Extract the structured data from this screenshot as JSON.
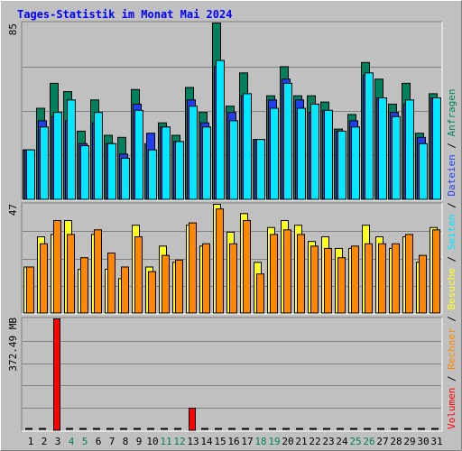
{
  "colors": {
    "background": "#c0c0c0",
    "frame_light": "#ffffff",
    "frame_dark": "#808080",
    "grid": "#808080",
    "title": "#0000ff",
    "anfragen": "#00805c",
    "dateien": "#2040f0",
    "seiten": "#00e8ff",
    "besuche": "#ffff20",
    "rechner": "#ff8800",
    "volumen": "#ff0000",
    "weekday": "#000000",
    "weekend": "#00805c"
  },
  "title": "Tages-Statistik im Monat Mai 2024",
  "legend": {
    "anfragen": "Anfragen",
    "dateien": "Dateien",
    "seiten": "Seiten",
    "besuche": "Besuche",
    "rechner": "Rechner",
    "volumen": "Volumen",
    "sep": " / "
  },
  "chart_data": [
    {
      "type": "bar",
      "title": "Tages-Statistik im Monat Mai 2024",
      "ylabel": "85",
      "ylim": [
        0,
        85
      ],
      "grid": true,
      "categories": [
        "1",
        "2",
        "3",
        "4",
        "5",
        "6",
        "7",
        "8",
        "9",
        "10",
        "11",
        "12",
        "13",
        "14",
        "15",
        "16",
        "17",
        "18",
        "19",
        "20",
        "21",
        "22",
        "23",
        "24",
        "25",
        "26",
        "27",
        "28",
        "29",
        "30",
        "31"
      ],
      "series": [
        {
          "name": "Anfragen",
          "values": [
            24,
            44,
            56,
            52,
            33,
            48,
            31,
            30,
            53,
            27,
            37,
            31,
            54,
            42,
            85,
            45,
            61,
            29,
            50,
            64,
            50,
            50,
            47,
            34,
            41,
            66,
            58,
            46,
            56,
            32,
            51
          ]
        },
        {
          "name": "Dateien",
          "values": [
            24,
            38,
            40,
            38,
            27,
            37,
            27,
            22,
            46,
            32,
            35,
            28,
            48,
            37,
            64,
            42,
            50,
            29,
            48,
            58,
            48,
            42,
            43,
            33,
            38,
            60,
            49,
            42,
            46,
            30,
            49
          ]
        },
        {
          "name": "Seiten",
          "values": [
            24,
            35,
            42,
            48,
            26,
            42,
            27,
            20,
            43,
            24,
            35,
            28,
            45,
            35,
            67,
            38,
            51,
            29,
            44,
            56,
            44,
            46,
            43,
            33,
            35,
            61,
            49,
            40,
            48,
            27,
            49
          ]
        }
      ]
    },
    {
      "type": "bar",
      "ylabel": "47",
      "ylim": [
        0,
        47
      ],
      "grid": true,
      "categories": [
        "1",
        "2",
        "3",
        "4",
        "5",
        "6",
        "7",
        "8",
        "9",
        "10",
        "11",
        "12",
        "13",
        "14",
        "15",
        "16",
        "17",
        "18",
        "19",
        "20",
        "21",
        "22",
        "23",
        "24",
        "25",
        "26",
        "27",
        "28",
        "29",
        "30",
        "31"
      ],
      "series": [
        {
          "name": "Besuche",
          "values": [
            20,
            33,
            34,
            40,
            19,
            34,
            19,
            15,
            38,
            20,
            29,
            22,
            38,
            29,
            47,
            35,
            43,
            22,
            37,
            40,
            38,
            31,
            33,
            28,
            28,
            38,
            33,
            28,
            33,
            22,
            37
          ]
        },
        {
          "name": "Rechner",
          "values": [
            20,
            30,
            40,
            34,
            24,
            36,
            26,
            20,
            33,
            18,
            25,
            23,
            39,
            30,
            45,
            30,
            40,
            17,
            34,
            36,
            34,
            29,
            28,
            24,
            29,
            30,
            30,
            30,
            34,
            25,
            36
          ]
        }
      ]
    },
    {
      "type": "bar",
      "ylabel": "372.49 MB",
      "ylim": [
        0,
        372.49
      ],
      "grid": true,
      "categories": [
        "1",
        "2",
        "3",
        "4",
        "5",
        "6",
        "7",
        "8",
        "9",
        "10",
        "11",
        "12",
        "13",
        "14",
        "15",
        "16",
        "17",
        "18",
        "19",
        "20",
        "21",
        "22",
        "23",
        "24",
        "25",
        "26",
        "27",
        "28",
        "29",
        "30",
        "31"
      ],
      "series": [
        {
          "name": "Volumen",
          "values": [
            0,
            0,
            372.49,
            0,
            0,
            0,
            0,
            0,
            0,
            0,
            0,
            0,
            75,
            0,
            0,
            0,
            0,
            0,
            0,
            0,
            0,
            0,
            0,
            0,
            0,
            0,
            0,
            0,
            0,
            0,
            0
          ]
        }
      ]
    }
  ],
  "weekend_days": [
    4,
    5,
    11,
    12,
    18,
    19,
    25,
    26
  ]
}
